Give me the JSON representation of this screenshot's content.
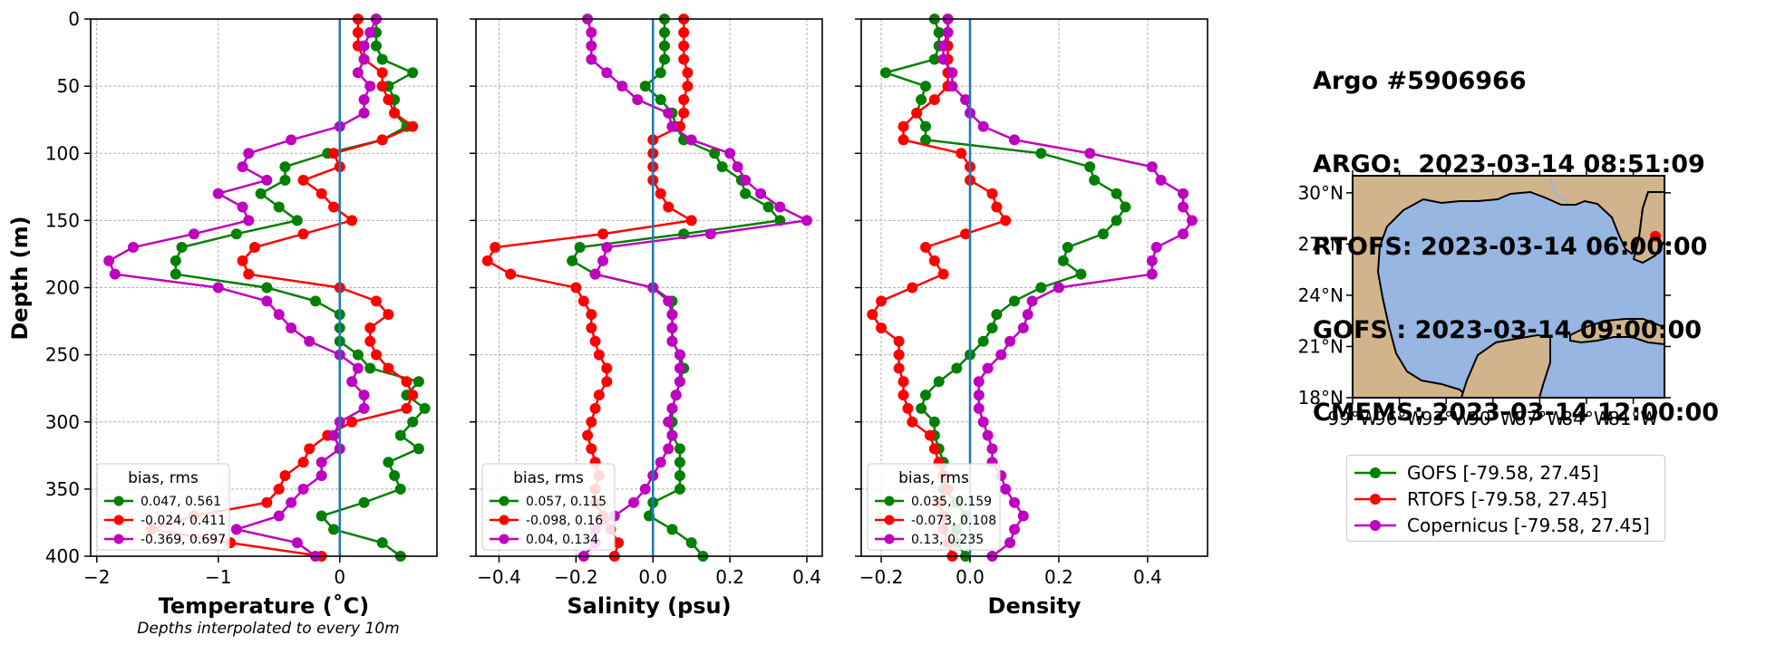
{
  "chart_data": [
    {
      "type": "line",
      "id": "temperature",
      "xlabel": "Temperature (˚C)",
      "ylabel": "Depth (m)",
      "note": "Depths interpolated to every 10m",
      "xlim": [
        -2.05,
        0.8
      ],
      "ylim": [
        400,
        0
      ],
      "xticks": [
        -2,
        -1,
        0
      ],
      "xtick_labels": [
        "−2",
        "−1",
        "0"
      ],
      "yticks": [
        0,
        50,
        100,
        150,
        200,
        250,
        300,
        350,
        400
      ],
      "grid": true,
      "zero_line": 0,
      "legend_title": "bias, rms",
      "legend_position": "lower-left",
      "depth": [
        0,
        10,
        20,
        30,
        40,
        50,
        60,
        70,
        80,
        90,
        100,
        110,
        120,
        130,
        140,
        150,
        160,
        170,
        180,
        190,
        200,
        210,
        220,
        230,
        240,
        250,
        260,
        270,
        280,
        290,
        300,
        310,
        320,
        330,
        340,
        350,
        360,
        370,
        380,
        390,
        400
      ],
      "series": [
        {
          "label": "0.047, 0.561",
          "color": "#008000",
          "values": [
            0.3,
            0.3,
            0.3,
            0.35,
            0.6,
            0.4,
            0.45,
            0.45,
            0.55,
            0.35,
            -0.1,
            -0.45,
            -0.45,
            -0.65,
            -0.5,
            -0.35,
            -0.85,
            -1.3,
            -1.35,
            -1.35,
            -0.6,
            -0.2,
            0,
            0,
            0,
            0.15,
            0.25,
            0.65,
            0.55,
            0.7,
            0.6,
            0.5,
            0.65,
            0.4,
            0.45,
            0.5,
            0.2,
            -0.15,
            -0.05,
            0.35,
            0.5
          ]
        },
        {
          "label": "-0.024, 0.411",
          "color": "#ff0000",
          "values": [
            0.15,
            0.15,
            0.15,
            0.2,
            0.35,
            0.35,
            0.4,
            0.45,
            0.6,
            0.35,
            -0.05,
            0.0,
            -0.3,
            -0.15,
            -0.05,
            0.1,
            -0.3,
            -0.7,
            -0.8,
            -0.75,
            0,
            0.3,
            0.4,
            0.25,
            0.25,
            0.3,
            0.4,
            0.55,
            0.6,
            0.55,
            0.1,
            -0.1,
            -0.25,
            -0.3,
            -0.45,
            -0.5,
            -0.6,
            -1.2,
            -1.55,
            -0.9,
            -0.15
          ]
        },
        {
          "label": "-0.369, 0.697",
          "color": "#bf00bf",
          "values": [
            0.3,
            0.25,
            0.2,
            0.2,
            0.15,
            0.25,
            0.2,
            0.2,
            0.0,
            -0.4,
            -0.75,
            -0.8,
            -0.6,
            -1.0,
            -0.8,
            -0.75,
            -1.2,
            -1.7,
            -1.9,
            -1.85,
            -1.0,
            -0.6,
            -0.5,
            -0.4,
            -0.25,
            0.0,
            0.15,
            0.1,
            0.2,
            0.2,
            0.0,
            -0.05,
            0.0,
            -0.15,
            -0.15,
            -0.3,
            -0.4,
            -0.5,
            -0.85,
            -0.35,
            -0.2
          ]
        }
      ]
    },
    {
      "type": "line",
      "id": "salinity",
      "xlabel": "Salinity (psu)",
      "xlim": [
        -0.46,
        0.44
      ],
      "ylim": [
        400,
        0
      ],
      "xticks": [
        -0.4,
        -0.2,
        0,
        0.2,
        0.4
      ],
      "xtick_labels": [
        "−0.4",
        "−0.2",
        "0.0",
        "0.2",
        "0.4"
      ],
      "grid": true,
      "zero_line": 0,
      "legend_title": "bias, rms",
      "legend_position": "lower-left",
      "depth": [
        0,
        10,
        20,
        30,
        40,
        50,
        60,
        70,
        80,
        90,
        100,
        110,
        120,
        130,
        140,
        150,
        160,
        170,
        180,
        190,
        200,
        210,
        220,
        230,
        240,
        250,
        260,
        270,
        280,
        290,
        300,
        310,
        320,
        330,
        340,
        350,
        360,
        370,
        380,
        390,
        400
      ],
      "series": [
        {
          "label": "0.057, 0.115",
          "color": "#008000",
          "values": [
            0.03,
            0.03,
            0.03,
            0.03,
            0.02,
            -0.02,
            0.02,
            0.05,
            0.06,
            0.08,
            0.16,
            0.18,
            0.23,
            0.24,
            0.3,
            0.33,
            0.08,
            -0.19,
            -0.21,
            -0.15,
            0.0,
            0.05,
            0.05,
            0.05,
            0.05,
            0.07,
            0.08,
            0.07,
            0.06,
            0.05,
            0.05,
            0.05,
            0.07,
            0.07,
            0.07,
            0.07,
            0.0,
            -0.01,
            0.05,
            0.1,
            0.13
          ]
        },
        {
          "label": "-0.098, 0.16",
          "color": "#ff0000",
          "values": [
            0.08,
            0.08,
            0.08,
            0.08,
            0.09,
            0.09,
            0.08,
            0.08,
            0.07,
            0.0,
            0.0,
            0.0,
            0.0,
            0.02,
            0.04,
            0.1,
            -0.13,
            -0.41,
            -0.43,
            -0.37,
            -0.2,
            -0.18,
            -0.16,
            -0.16,
            -0.15,
            -0.14,
            -0.12,
            -0.12,
            -0.14,
            -0.15,
            -0.16,
            -0.17,
            -0.16,
            -0.15,
            -0.14,
            -0.15,
            -0.15,
            -0.13,
            -0.11,
            -0.09,
            -0.1
          ]
        },
        {
          "label": "0.04, 0.134",
          "color": "#bf00bf",
          "values": [
            -0.17,
            -0.16,
            -0.16,
            -0.16,
            -0.12,
            -0.08,
            -0.04,
            0.04,
            0.05,
            0.1,
            0.2,
            0.22,
            0.24,
            0.28,
            0.33,
            0.4,
            0.15,
            -0.12,
            -0.13,
            -0.15,
            0.0,
            0.04,
            0.05,
            0.05,
            0.05,
            0.07,
            0.07,
            0.07,
            0.06,
            0.05,
            0.04,
            0.05,
            0.04,
            0.02,
            0.0,
            -0.02,
            -0.05,
            -0.1,
            -0.15,
            -0.15,
            -0.18
          ]
        }
      ]
    },
    {
      "type": "line",
      "id": "density",
      "xlabel": "Density",
      "xlim": [
        -0.245,
        0.535
      ],
      "ylim": [
        400,
        0
      ],
      "xticks": [
        -0.2,
        0,
        0.2,
        0.4
      ],
      "xtick_labels": [
        "−0.2",
        "0.0",
        "0.2",
        "0.4"
      ],
      "grid": true,
      "zero_line": 0,
      "legend_title": "bias, rms",
      "legend_position": "lower-left",
      "depth": [
        0,
        10,
        20,
        30,
        40,
        50,
        60,
        70,
        80,
        90,
        100,
        110,
        120,
        130,
        140,
        150,
        160,
        170,
        180,
        190,
        200,
        210,
        220,
        230,
        240,
        250,
        260,
        270,
        280,
        290,
        300,
        310,
        320,
        330,
        340,
        350,
        360,
        370,
        380,
        390,
        400
      ],
      "series": [
        {
          "label": "0.035, 0.159",
          "color": "#008000",
          "values": [
            -0.08,
            -0.07,
            -0.07,
            -0.08,
            -0.19,
            -0.1,
            -0.11,
            -0.12,
            -0.1,
            -0.1,
            0.16,
            0.27,
            0.28,
            0.33,
            0.35,
            0.33,
            0.3,
            0.22,
            0.21,
            0.25,
            0.16,
            0.1,
            0.06,
            0.05,
            0.03,
            0.0,
            -0.03,
            -0.07,
            -0.1,
            -0.11,
            -0.08,
            -0.08,
            -0.07,
            -0.06,
            -0.06,
            -0.06,
            -0.03,
            -0.01,
            -0.03,
            -0.03,
            -0.01
          ]
        },
        {
          "label": "-0.073, 0.108",
          "color": "#ff0000",
          "values": [
            -0.05,
            -0.05,
            -0.05,
            -0.05,
            -0.05,
            -0.05,
            -0.08,
            -0.12,
            -0.15,
            -0.15,
            -0.02,
            0.0,
            0.0,
            0.05,
            0.06,
            0.08,
            -0.01,
            -0.1,
            -0.08,
            -0.06,
            -0.13,
            -0.2,
            -0.22,
            -0.2,
            -0.16,
            -0.16,
            -0.16,
            -0.15,
            -0.15,
            -0.14,
            -0.13,
            -0.09,
            -0.08,
            -0.07,
            -0.06,
            -0.05,
            -0.07,
            -0.06,
            -0.06,
            -0.05,
            -0.04
          ]
        },
        {
          "label": "0.13, 0.235",
          "color": "#bf00bf",
          "values": [
            -0.05,
            -0.05,
            -0.06,
            -0.06,
            -0.04,
            -0.04,
            -0.01,
            0.0,
            0.03,
            0.1,
            0.27,
            0.41,
            0.43,
            0.48,
            0.48,
            0.5,
            0.48,
            0.42,
            0.41,
            0.41,
            0.2,
            0.14,
            0.13,
            0.12,
            0.09,
            0.07,
            0.04,
            0.02,
            0.02,
            0.02,
            0.03,
            0.04,
            0.05,
            0.05,
            0.07,
            0.08,
            0.1,
            0.12,
            0.1,
            0.09,
            0.05
          ]
        }
      ]
    }
  ],
  "info": {
    "lines": [
      "Argo #5906966",
      "ARGO:  2023-03-14 08:51:09",
      "RTOFS: 2023-03-14 06:00:00",
      "GOFS : 2023-03-14 09:00:00",
      "CMEMS: 2023-03-14 12:00:00"
    ]
  },
  "map": {
    "lon_range": [
      -99,
      -79
    ],
    "lat_range": [
      18,
      31
    ],
    "lat_ticks": [
      "30°N",
      "27°N",
      "24°N",
      "21°N",
      "18°N"
    ],
    "lon_ticks": [
      "99°W",
      "96°W",
      "93°W",
      "90°W",
      "87°W",
      "84°W",
      "81°W"
    ],
    "marker_lon": -79.58,
    "marker_lat": 27.45,
    "marker_color": "#ff0000",
    "ocean_color": "#97b6e1",
    "land_color": "#d2b48c"
  },
  "map_legend": [
    {
      "label": "GOFS [-79.58, 27.45]",
      "color": "#008000"
    },
    {
      "label": "RTOFS [-79.58, 27.45]",
      "color": "#ff0000"
    },
    {
      "label": "Copernicus [-79.58, 27.45]",
      "color": "#bf00bf"
    }
  ]
}
